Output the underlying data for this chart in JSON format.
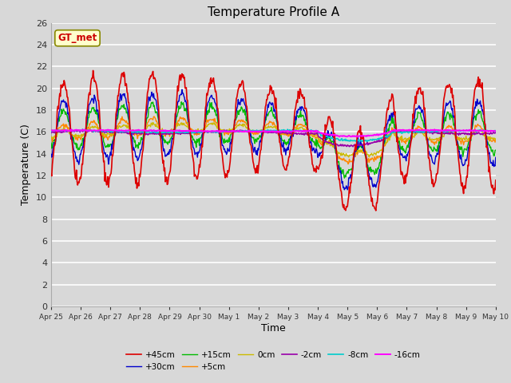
{
  "title": "Temperature Profile A",
  "xlabel": "Time",
  "ylabel": "Temperature (C)",
  "ylim": [
    0,
    26
  ],
  "background_color": "#d8d8d8",
  "plot_bg_color": "#d8d8d8",
  "grid_color": "white",
  "annotation_text": "GT_met",
  "annotation_bg": "#ffffcc",
  "annotation_border": "#888800",
  "annotation_text_color": "#cc0000",
  "tick_labels": [
    "Apr 25",
    "Apr 26",
    "Apr 27",
    "Apr 28",
    "Apr 29",
    "Apr 30",
    "May 1",
    "May 2",
    "May 3",
    "May 4",
    "May 5",
    "May 6",
    "May 7",
    "May 8",
    "May 9",
    "May 10"
  ],
  "series": [
    {
      "label": "+45cm",
      "color": "#dd0000",
      "lw": 1.2,
      "zorder": 5
    },
    {
      "label": "+30cm",
      "color": "#0000cc",
      "lw": 1.0,
      "zorder": 4
    },
    {
      "label": "+15cm",
      "color": "#00bb00",
      "lw": 1.0,
      "zorder": 3
    },
    {
      "label": "+5cm",
      "color": "#ff8800",
      "lw": 1.0,
      "zorder": 3
    },
    {
      "label": "0cm",
      "color": "#ccbb00",
      "lw": 1.0,
      "zorder": 3
    },
    {
      "label": "-2cm",
      "color": "#9900aa",
      "lw": 1.2,
      "zorder": 4
    },
    {
      "label": "-8cm",
      "color": "#00cccc",
      "lw": 1.2,
      "zorder": 4
    },
    {
      "label": "-16cm",
      "color": "#ff00ff",
      "lw": 1.4,
      "zorder": 5
    }
  ],
  "legend_ncol": 6,
  "legend_fontsize": 7.5
}
